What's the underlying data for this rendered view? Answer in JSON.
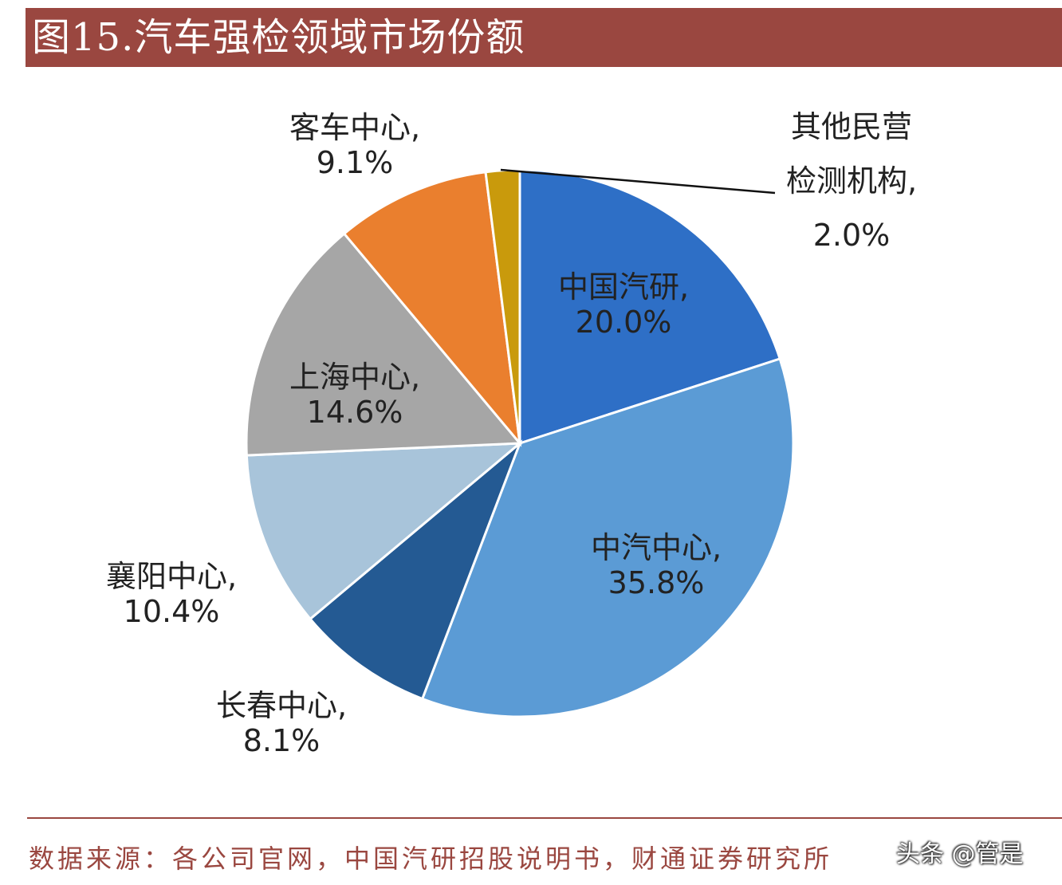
{
  "title": "图15.汽车强检领域市场份额",
  "source": "数据来源：各公司官网，中国汽研招股说明书，财通证券研究所",
  "watermark": "头条 @管是",
  "chart_data": {
    "type": "pie",
    "start": "12 o'clock, clockwise",
    "slices": [
      {
        "name": "中国汽研",
        "label_lines": [
          "中国汽研,",
          "20.0%"
        ],
        "value": 20.0,
        "color": "#2e6fc6"
      },
      {
        "name": "中汽中心",
        "label_lines": [
          "中汽中心,",
          "35.8%"
        ],
        "value": 35.8,
        "color": "#5b9bd5"
      },
      {
        "name": "长春中心",
        "label_lines": [
          "长春中心,",
          "8.1%"
        ],
        "value": 8.1,
        "color": "#245a93"
      },
      {
        "name": "襄阳中心",
        "label_lines": [
          "襄阳中心,",
          "10.4%"
        ],
        "value": 10.4,
        "color": "#a8c4da"
      },
      {
        "name": "上海中心",
        "label_lines": [
          "上海中心,",
          "14.6%"
        ],
        "value": 14.6,
        "color": "#a6a6a6"
      },
      {
        "name": "客车中心",
        "label_lines": [
          "客车中心,",
          "9.1%"
        ],
        "value": 9.1,
        "color": "#ea7f2e"
      },
      {
        "name": "其他民营检测机构",
        "label_lines": [
          "其他民营",
          "检测机构,",
          "2.0%"
        ],
        "value": 2.0,
        "color": "#c99a0c"
      }
    ]
  }
}
